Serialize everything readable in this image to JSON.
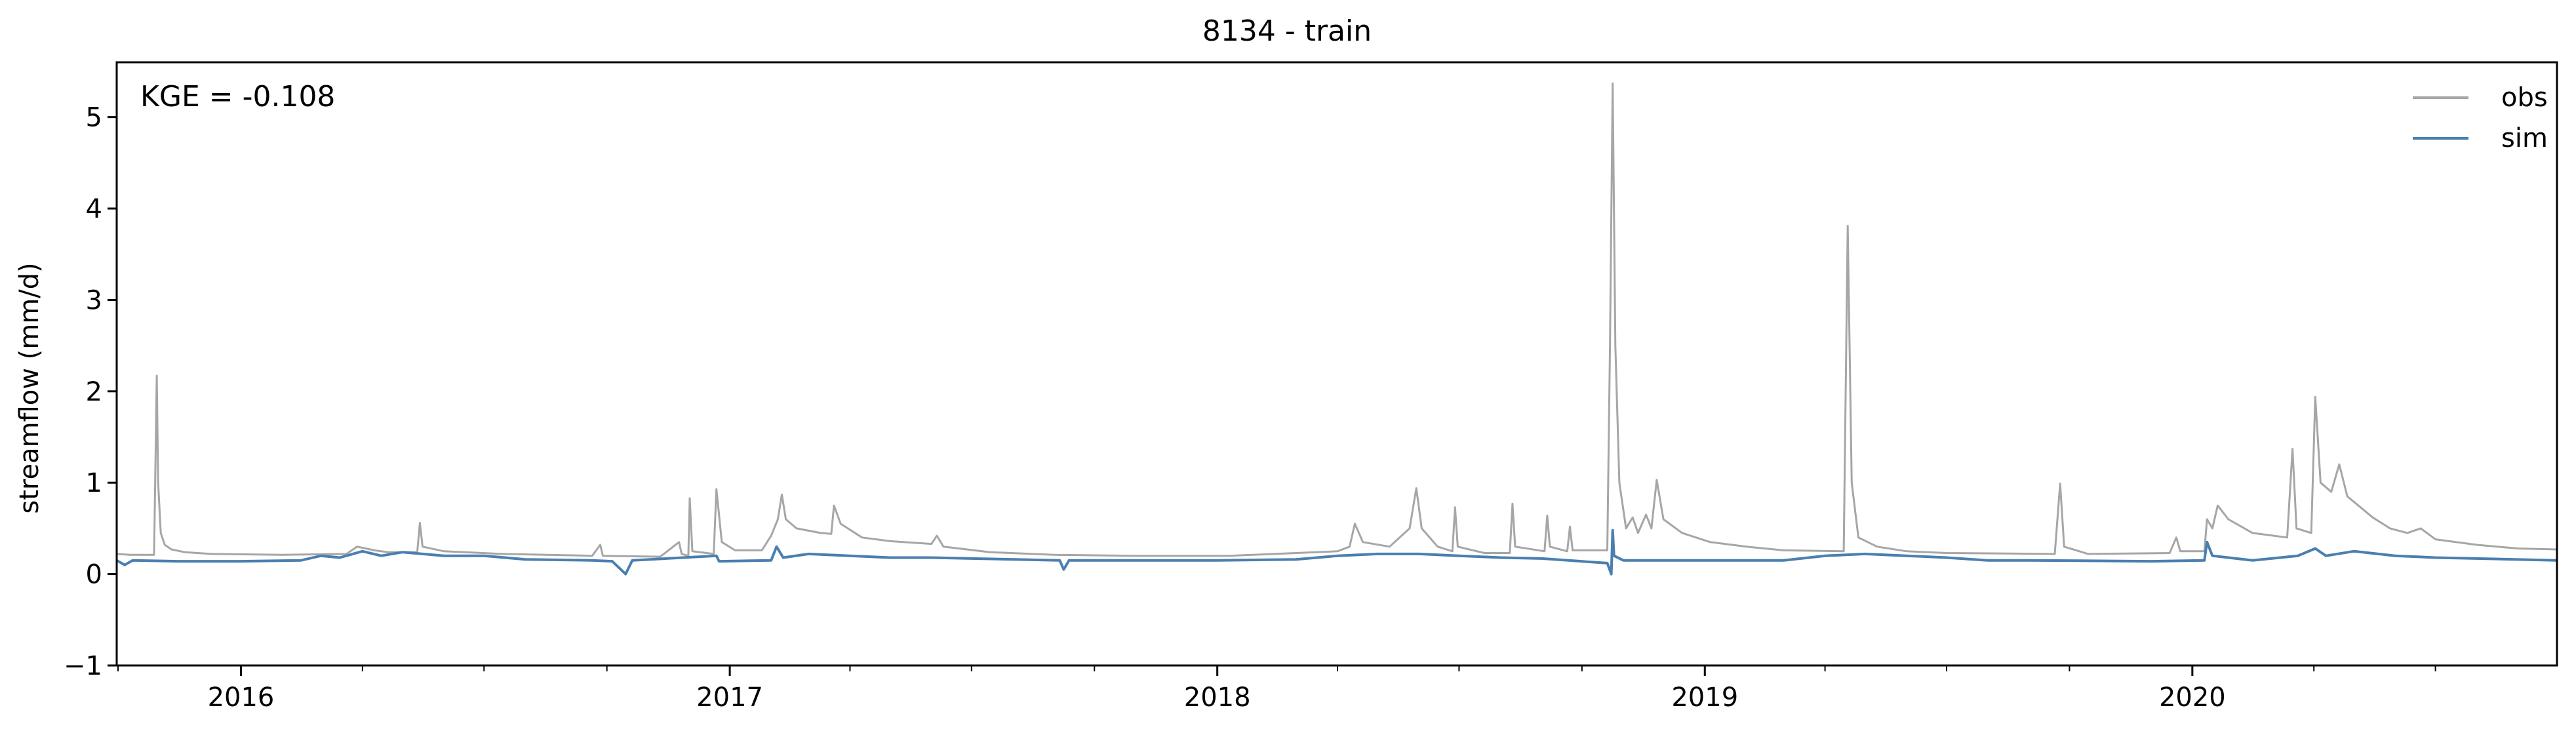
{
  "chart_data": {
    "type": "line",
    "title": "8134 - train",
    "xlabel": "",
    "ylabel": "streamflow (mm/d)",
    "annotation": "KGE = -0.108",
    "xlim": [
      "2015-09-30",
      "2020-09-30"
    ],
    "ylim": [
      -1,
      5.6
    ],
    "grid": false,
    "legend_position": "top-right",
    "y_ticks": [
      -1,
      0,
      1,
      2,
      3,
      4,
      5
    ],
    "x_ticks": [
      {
        "date": "2016-01-01",
        "label": "2016"
      },
      {
        "date": "2017-01-01",
        "label": "2017"
      },
      {
        "date": "2018-01-01",
        "label": "2018"
      },
      {
        "date": "2019-01-01",
        "label": "2019"
      },
      {
        "date": "2020-01-01",
        "label": "2020"
      }
    ],
    "x_minor_tick_months": [
      4,
      7,
      10
    ],
    "series": [
      {
        "name": "obs",
        "color": "#a6a6a6",
        "points": [
          [
            "2015-09-30",
            0.22
          ],
          [
            "2015-10-10",
            0.21
          ],
          [
            "2015-10-20",
            0.21
          ],
          [
            "2015-10-28",
            0.21
          ],
          [
            "2015-10-29",
            1.2
          ],
          [
            "2015-10-30",
            2.17
          ],
          [
            "2015-10-31",
            1.0
          ],
          [
            "2015-11-02",
            0.45
          ],
          [
            "2015-11-05",
            0.32
          ],
          [
            "2015-11-10",
            0.27
          ],
          [
            "2015-11-20",
            0.24
          ],
          [
            "2015-12-10",
            0.22
          ],
          [
            "2016-02-01",
            0.21
          ],
          [
            "2016-03-20",
            0.22
          ],
          [
            "2016-03-28",
            0.3
          ],
          [
            "2016-04-10",
            0.26
          ],
          [
            "2016-04-20",
            0.24
          ],
          [
            "2016-05-12",
            0.24
          ],
          [
            "2016-05-14",
            0.56
          ],
          [
            "2016-05-16",
            0.3
          ],
          [
            "2016-06-01",
            0.25
          ],
          [
            "2016-07-15",
            0.22
          ],
          [
            "2016-09-20",
            0.2
          ],
          [
            "2016-09-26",
            0.32
          ],
          [
            "2016-09-28",
            0.2
          ],
          [
            "2016-11-10",
            0.19
          ],
          [
            "2016-11-24",
            0.35
          ],
          [
            "2016-11-26",
            0.22
          ],
          [
            "2016-12-01",
            0.2
          ],
          [
            "2016-12-02",
            0.83
          ],
          [
            "2016-12-04",
            0.25
          ],
          [
            "2016-12-20",
            0.22
          ],
          [
            "2016-12-22",
            0.93
          ],
          [
            "2016-12-26",
            0.35
          ],
          [
            "2017-01-05",
            0.26
          ],
          [
            "2017-01-25",
            0.26
          ],
          [
            "2017-02-01",
            0.42
          ],
          [
            "2017-02-06",
            0.6
          ],
          [
            "2017-02-09",
            0.87
          ],
          [
            "2017-02-12",
            0.6
          ],
          [
            "2017-02-20",
            0.5
          ],
          [
            "2017-03-10",
            0.45
          ],
          [
            "2017-03-18",
            0.44
          ],
          [
            "2017-03-20",
            0.75
          ],
          [
            "2017-03-25",
            0.55
          ],
          [
            "2017-04-10",
            0.4
          ],
          [
            "2017-05-01",
            0.36
          ],
          [
            "2017-06-01",
            0.33
          ],
          [
            "2017-06-05",
            0.42
          ],
          [
            "2017-06-10",
            0.3
          ],
          [
            "2017-07-15",
            0.24
          ],
          [
            "2017-09-01",
            0.21
          ],
          [
            "2017-11-01",
            0.2
          ],
          [
            "2018-01-10",
            0.2
          ],
          [
            "2018-03-01",
            0.23
          ],
          [
            "2018-04-01",
            0.25
          ],
          [
            "2018-04-10",
            0.3
          ],
          [
            "2018-04-14",
            0.55
          ],
          [
            "2018-04-20",
            0.35
          ],
          [
            "2018-05-10",
            0.3
          ],
          [
            "2018-05-25",
            0.5
          ],
          [
            "2018-05-30",
            0.94
          ],
          [
            "2018-06-03",
            0.5
          ],
          [
            "2018-06-15",
            0.3
          ],
          [
            "2018-06-26",
            0.25
          ],
          [
            "2018-06-28",
            0.73
          ],
          [
            "2018-06-30",
            0.3
          ],
          [
            "2018-07-20",
            0.23
          ],
          [
            "2018-08-08",
            0.23
          ],
          [
            "2018-08-10",
            0.77
          ],
          [
            "2018-08-12",
            0.3
          ],
          [
            "2018-09-03",
            0.25
          ],
          [
            "2018-09-05",
            0.64
          ],
          [
            "2018-09-07",
            0.3
          ],
          [
            "2018-09-20",
            0.25
          ],
          [
            "2018-09-22",
            0.52
          ],
          [
            "2018-09-24",
            0.26
          ],
          [
            "2018-10-20",
            0.26
          ],
          [
            "2018-10-22",
            2.5
          ],
          [
            "2018-10-24",
            5.37
          ],
          [
            "2018-10-26",
            2.5
          ],
          [
            "2018-10-29",
            1.0
          ],
          [
            "2018-11-03",
            0.5
          ],
          [
            "2018-11-08",
            0.62
          ],
          [
            "2018-11-12",
            0.45
          ],
          [
            "2018-11-18",
            0.65
          ],
          [
            "2018-11-22",
            0.5
          ],
          [
            "2018-11-26",
            1.03
          ],
          [
            "2018-12-01",
            0.6
          ],
          [
            "2018-12-15",
            0.45
          ],
          [
            "2019-01-05",
            0.35
          ],
          [
            "2019-02-01",
            0.3
          ],
          [
            "2019-03-01",
            0.26
          ],
          [
            "2019-04-15",
            0.25
          ],
          [
            "2019-04-18",
            3.81
          ],
          [
            "2019-04-21",
            1.0
          ],
          [
            "2019-04-26",
            0.4
          ],
          [
            "2019-05-10",
            0.3
          ],
          [
            "2019-06-01",
            0.25
          ],
          [
            "2019-07-01",
            0.23
          ],
          [
            "2019-09-20",
            0.22
          ],
          [
            "2019-09-24",
            0.99
          ],
          [
            "2019-09-27",
            0.3
          ],
          [
            "2019-10-15",
            0.22
          ],
          [
            "2019-12-15",
            0.23
          ],
          [
            "2019-12-20",
            0.4
          ],
          [
            "2019-12-23",
            0.25
          ],
          [
            "2020-01-10",
            0.25
          ],
          [
            "2020-01-12",
            0.6
          ],
          [
            "2020-01-16",
            0.5
          ],
          [
            "2020-01-20",
            0.75
          ],
          [
            "2020-01-28",
            0.6
          ],
          [
            "2020-02-15",
            0.45
          ],
          [
            "2020-03-12",
            0.4
          ],
          [
            "2020-03-16",
            1.37
          ],
          [
            "2020-03-19",
            0.5
          ],
          [
            "2020-03-30",
            0.45
          ],
          [
            "2020-04-02",
            1.94
          ],
          [
            "2020-04-06",
            1.0
          ],
          [
            "2020-04-14",
            0.9
          ],
          [
            "2020-04-20",
            1.2
          ],
          [
            "2020-04-26",
            0.85
          ],
          [
            "2020-05-15",
            0.62
          ],
          [
            "2020-05-28",
            0.5
          ],
          [
            "2020-06-10",
            0.45
          ],
          [
            "2020-06-20",
            0.5
          ],
          [
            "2020-07-01",
            0.38
          ],
          [
            "2020-08-01",
            0.32
          ],
          [
            "2020-09-01",
            0.28
          ],
          [
            "2020-09-30",
            0.27
          ]
        ]
      },
      {
        "name": "sim",
        "color": "#4a7fb0",
        "points": [
          [
            "2015-09-30",
            0.15
          ],
          [
            "2015-10-06",
            0.1
          ],
          [
            "2015-10-12",
            0.15
          ],
          [
            "2015-11-15",
            0.14
          ],
          [
            "2016-01-01",
            0.14
          ],
          [
            "2016-02-15",
            0.15
          ],
          [
            "2016-03-01",
            0.2
          ],
          [
            "2016-03-15",
            0.18
          ],
          [
            "2016-04-01",
            0.25
          ],
          [
            "2016-04-15",
            0.2
          ],
          [
            "2016-05-01",
            0.24
          ],
          [
            "2016-06-01",
            0.2
          ],
          [
            "2016-07-01",
            0.2
          ],
          [
            "2016-08-01",
            0.16
          ],
          [
            "2016-09-20",
            0.15
          ],
          [
            "2016-10-05",
            0.14
          ],
          [
            "2016-10-15",
            0.0
          ],
          [
            "2016-10-20",
            0.15
          ],
          [
            "2016-12-22",
            0.2
          ],
          [
            "2016-12-24",
            0.14
          ],
          [
            "2017-02-01",
            0.15
          ],
          [
            "2017-02-05",
            0.3
          ],
          [
            "2017-02-10",
            0.18
          ],
          [
            "2017-03-01",
            0.22
          ],
          [
            "2017-04-01",
            0.2
          ],
          [
            "2017-05-01",
            0.18
          ],
          [
            "2017-06-01",
            0.18
          ],
          [
            "2017-07-01",
            0.17
          ],
          [
            "2017-09-05",
            0.15
          ],
          [
            "2017-09-08",
            0.05
          ],
          [
            "2017-09-12",
            0.15
          ],
          [
            "2017-11-01",
            0.15
          ],
          [
            "2018-01-01",
            0.15
          ],
          [
            "2018-03-01",
            0.16
          ],
          [
            "2018-04-01",
            0.2
          ],
          [
            "2018-05-01",
            0.22
          ],
          [
            "2018-06-01",
            0.22
          ],
          [
            "2018-07-01",
            0.2
          ],
          [
            "2018-08-01",
            0.18
          ],
          [
            "2018-09-01",
            0.17
          ],
          [
            "2018-10-20",
            0.12
          ],
          [
            "2018-10-23",
            0.0
          ],
          [
            "2018-10-24",
            0.48
          ],
          [
            "2018-10-25",
            0.2
          ],
          [
            "2018-11-01",
            0.15
          ],
          [
            "2019-01-01",
            0.15
          ],
          [
            "2019-03-01",
            0.15
          ],
          [
            "2019-04-01",
            0.2
          ],
          [
            "2019-05-01",
            0.22
          ],
          [
            "2019-06-01",
            0.2
          ],
          [
            "2019-07-01",
            0.18
          ],
          [
            "2019-08-01",
            0.15
          ],
          [
            "2019-09-01",
            0.15
          ],
          [
            "2019-12-01",
            0.14
          ],
          [
            "2020-01-10",
            0.15
          ],
          [
            "2020-01-12",
            0.35
          ],
          [
            "2020-01-16",
            0.2
          ],
          [
            "2020-02-15",
            0.15
          ],
          [
            "2020-03-20",
            0.2
          ],
          [
            "2020-04-02",
            0.28
          ],
          [
            "2020-04-10",
            0.2
          ],
          [
            "2020-05-01",
            0.25
          ],
          [
            "2020-06-01",
            0.2
          ],
          [
            "2020-07-01",
            0.18
          ],
          [
            "2020-08-01",
            0.17
          ],
          [
            "2020-09-30",
            0.15
          ]
        ]
      }
    ]
  }
}
